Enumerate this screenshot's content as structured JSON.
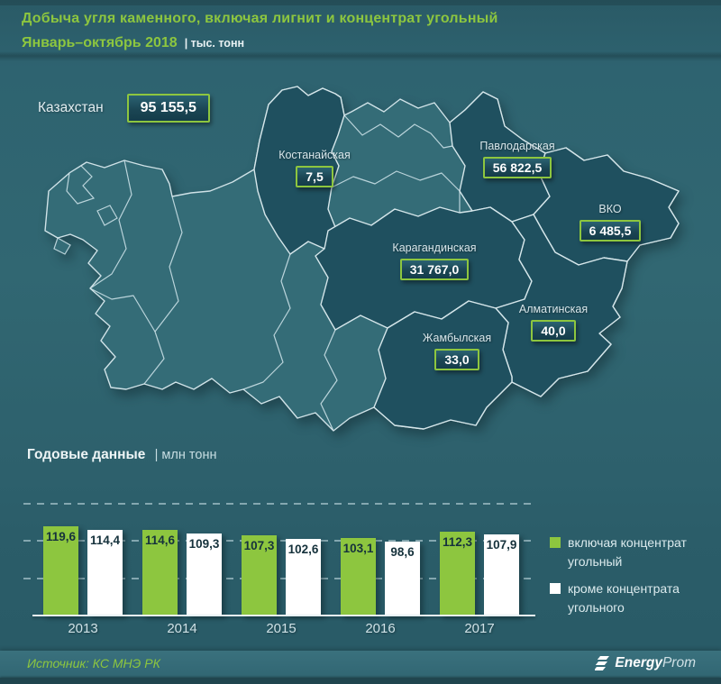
{
  "colors": {
    "accent": "#8dc63f",
    "map_base": "#346c77",
    "map_highlight": "#1f505f",
    "background": "#2d5f6c",
    "bar_green": "#8dc63f",
    "bar_white": "#ffffff"
  },
  "header": {
    "title_line1": "Добыча угля каменного, включая лигнит и концентрат угольный",
    "title_line2": "Январь–октябрь 2018",
    "units": "| тыс. тонн"
  },
  "map": {
    "country_label": "Казахстан",
    "country_value": "95 155,5",
    "regions": [
      {
        "name": "Костанайская",
        "value": "7,5"
      },
      {
        "name": "Павлодарская",
        "value": "56 822,5"
      },
      {
        "name": "ВКО",
        "value": "6 485,5"
      },
      {
        "name": "Карагандинская",
        "value": "31 767,0"
      },
      {
        "name": "Алматинская",
        "value": "40,0"
      },
      {
        "name": "Жамбылская",
        "value": "33,0"
      }
    ]
  },
  "chart": {
    "heading": "Годовые данные",
    "units": "| млн тонн"
  },
  "chart_data": {
    "type": "bar",
    "title": "Годовые данные, млн тонн",
    "categories": [
      "2013",
      "2014",
      "2015",
      "2016",
      "2017"
    ],
    "series": [
      {
        "name": "включая концентрат угольный",
        "color": "#8dc63f",
        "values": [
          119.6,
          114.6,
          107.3,
          103.1,
          112.3
        ],
        "labels": [
          "119,6",
          "114,6",
          "107,3",
          "103,1",
          "112,3"
        ]
      },
      {
        "name": "кроме концентрата угольного",
        "color": "#ffffff",
        "values": [
          114.4,
          109.3,
          102.6,
          98.6,
          107.9
        ],
        "labels": [
          "114,4",
          "109,3",
          "102,6",
          "98,6",
          "107,9"
        ]
      }
    ],
    "ylim": [
      0,
      150
    ],
    "gridlines": [
      50,
      100,
      150
    ],
    "grid": "dashed horizontal",
    "legend_position": "right",
    "xlabel": "",
    "ylabel": "млн тонн"
  },
  "footer": {
    "source": "Источник: КС МНЭ РК",
    "brand_bold": "Energy",
    "brand_light": "Prom"
  }
}
